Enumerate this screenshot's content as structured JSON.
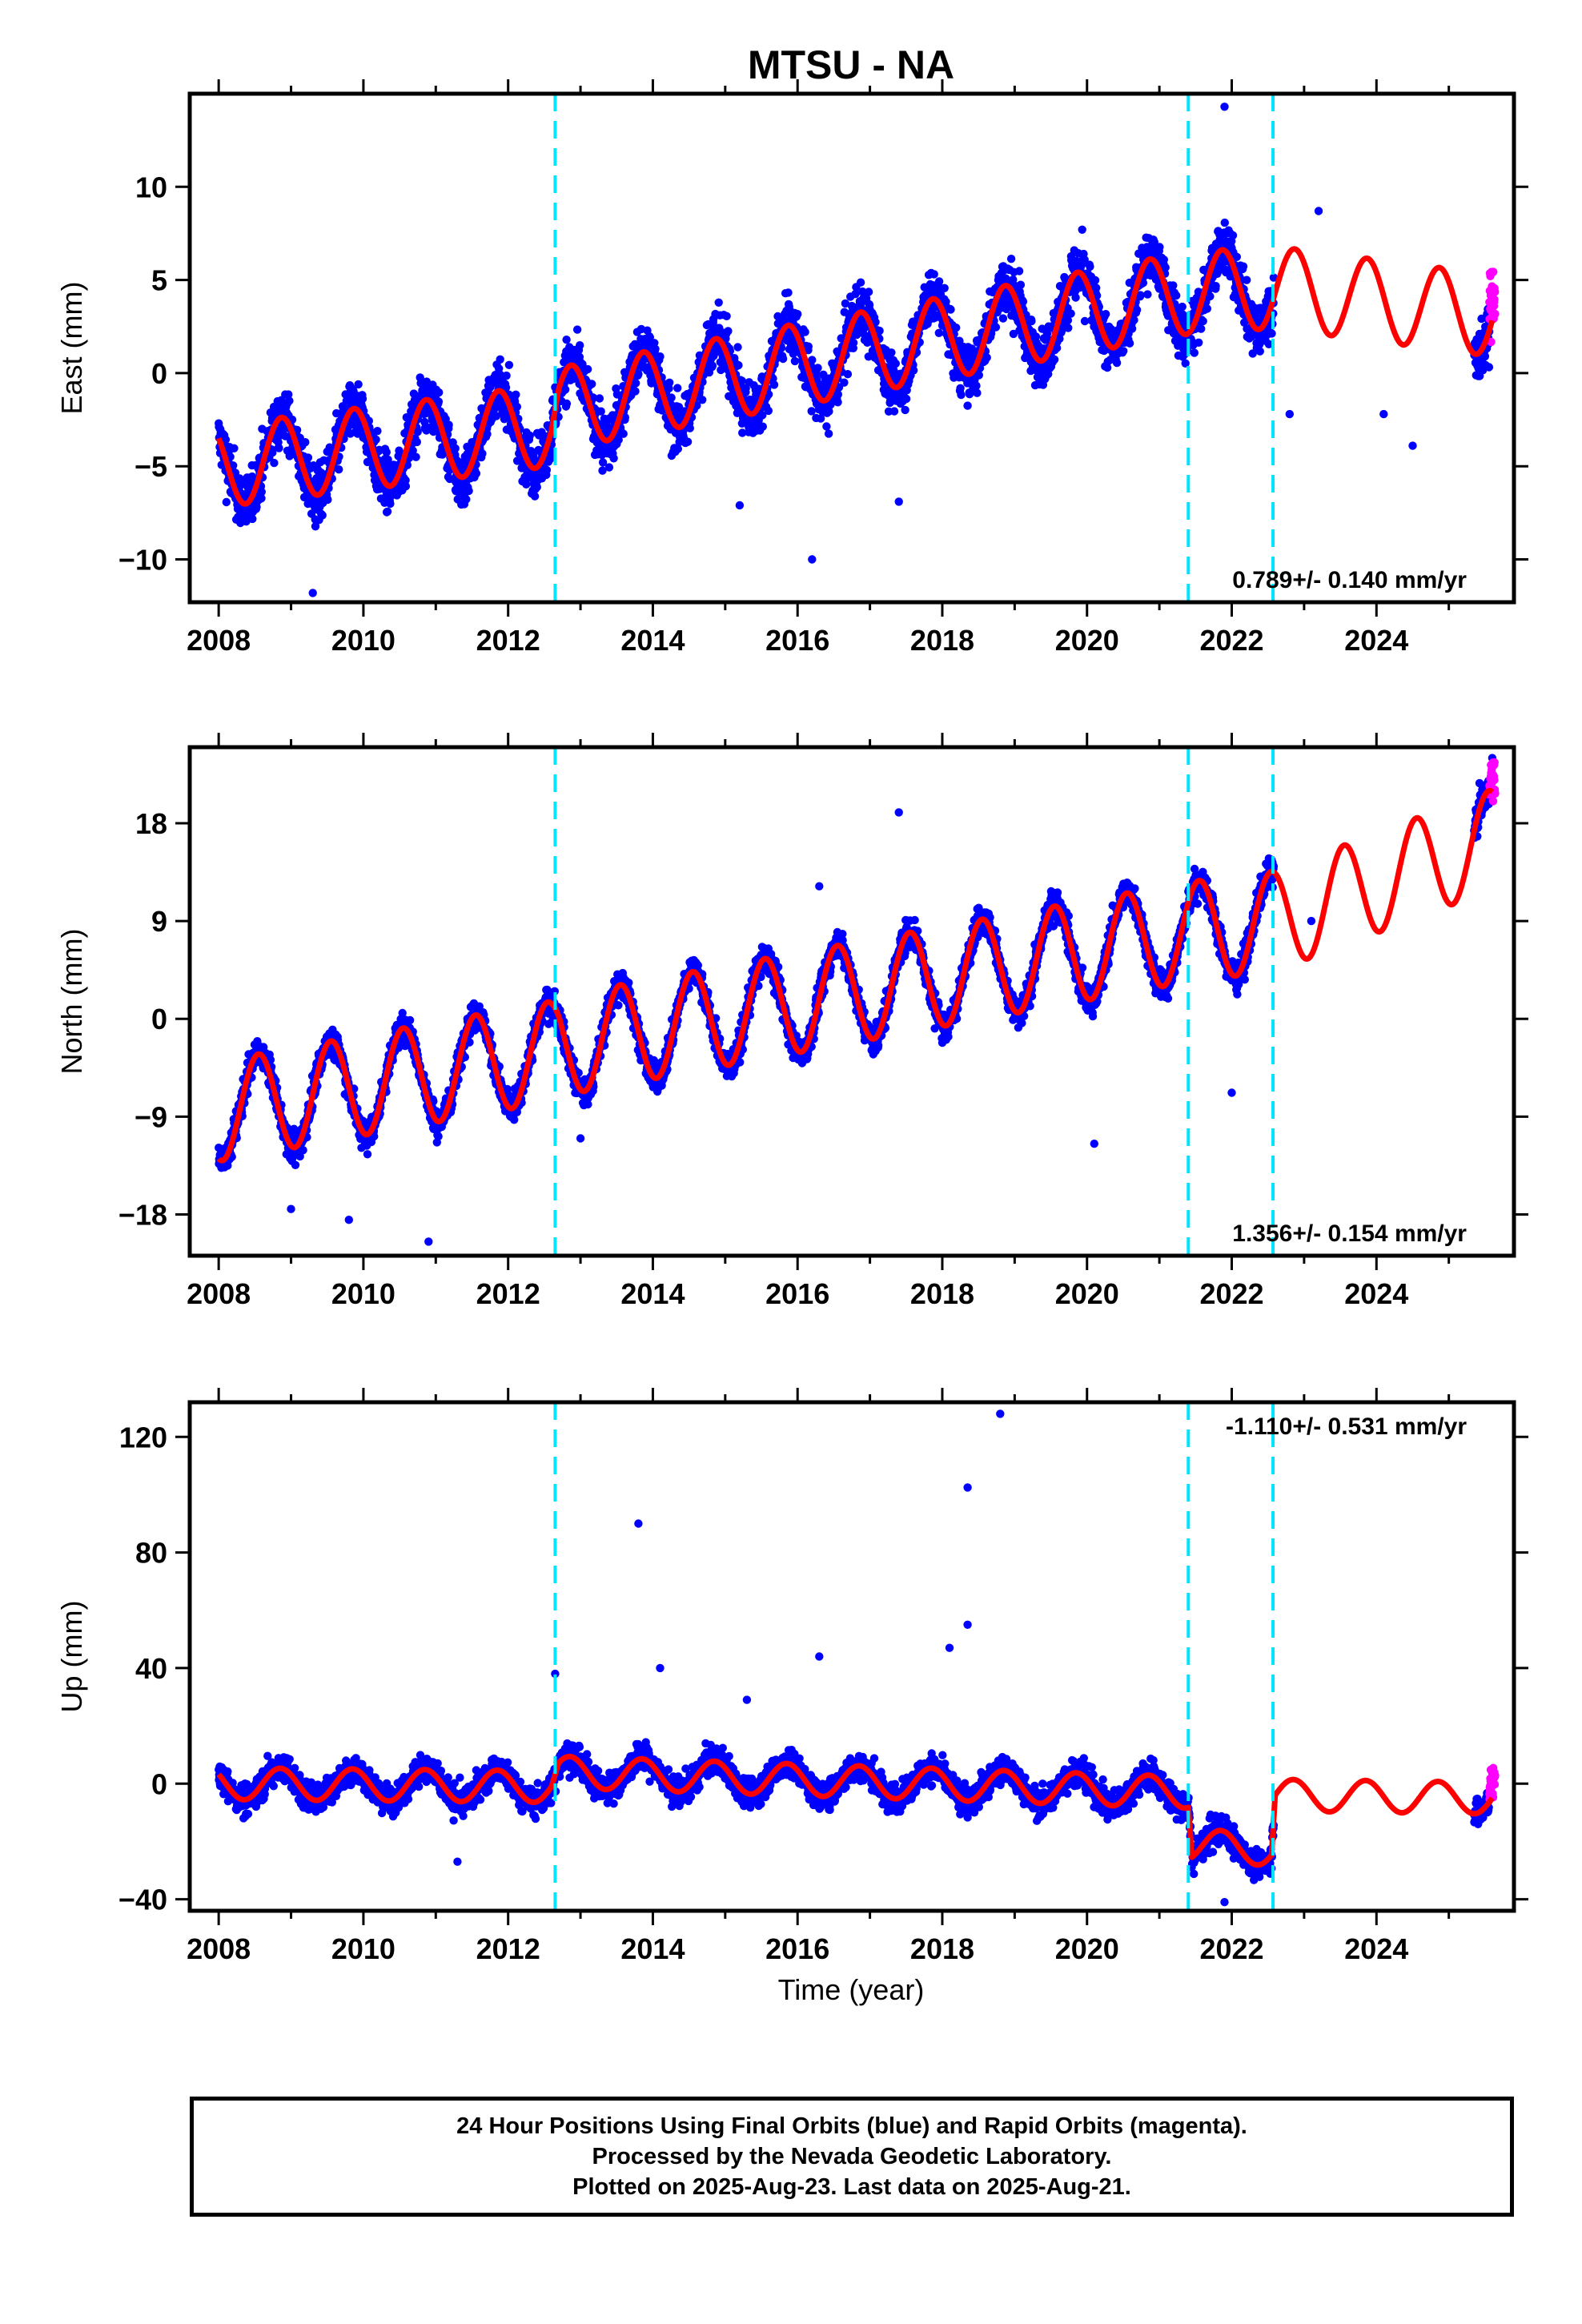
{
  "title": "MTSU - NA",
  "x_label": "Time (year)",
  "x_ticks": [
    "2008",
    "2010",
    "2012",
    "2014",
    "2016",
    "2018",
    "2020",
    "2022",
    "2024"
  ],
  "caption": [
    "24 Hour Positions Using Final Orbits (blue) and Rapid Orbits (magenta).",
    "Processed by the Nevada Geodetic Laboratory.",
    "Plotted on 2025-Aug-23. Last data on 2025-Aug-21."
  ],
  "colors": {
    "final_orbits": "#0000ff",
    "rapid_orbits": "#ff00ff",
    "model_fit": "#ff0000",
    "steps": "#00e5ff",
    "axes": "#000000"
  },
  "chart_data": [
    {
      "type": "scatter",
      "name": "east",
      "ylabel": "East (mm)",
      "xlim": [
        2007.6,
        2025.9
      ],
      "ylim": [
        -12.3,
        15.0
      ],
      "y_ticks": [
        10,
        5,
        0,
        -5,
        -10
      ],
      "y_tick_labels": [
        "10",
        "5",
        "0",
        "−5",
        "−10"
      ],
      "step_lines": [
        2012.65,
        2021.4,
        2022.57
      ],
      "rate_label": "0.789+/- 0.140 mm/yr",
      "rate_label_position": "bottom-right",
      "model": {
        "base": [
          [
            2008.0,
            -5.0
          ],
          [
            2012.6,
            -2.8
          ],
          [
            2012.7,
            -1.9
          ],
          [
            2021.4,
            4.3
          ],
          [
            2022.6,
            4.6
          ],
          [
            2025.6,
            3.1
          ]
        ],
        "amplitude": 2.2,
        "peak_phase": 0.87
      },
      "final_orbits_range": [
        [
          2008.0,
          2022.58
        ],
        [
          2025.35,
          2025.56
        ]
      ],
      "rapid_orbits_range": [
        2025.56,
        2025.64
      ],
      "scatter_noise": 1.4,
      "outliers": [
        [
          2021.9,
          14.3
        ],
        [
          2016.2,
          -10.0
        ],
        [
          2009.3,
          -11.8
        ],
        [
          2017.4,
          -6.9
        ],
        [
          2015.2,
          -7.1
        ],
        [
          2023.2,
          8.7
        ],
        [
          2024.5,
          -3.9
        ],
        [
          2022.8,
          -2.2
        ],
        [
          2024.1,
          -2.2
        ]
      ]
    },
    {
      "type": "scatter",
      "name": "north",
      "ylabel": "North (mm)",
      "xlim": [
        2007.6,
        2025.9
      ],
      "ylim": [
        -21.8,
        25.0
      ],
      "y_ticks": [
        18,
        9,
        0,
        -9,
        -18
      ],
      "y_tick_labels": [
        "18",
        "9",
        "0",
        "−9",
        "−18"
      ],
      "step_lines": [
        2012.65,
        2021.4,
        2022.57
      ],
      "rate_label": "1.356+/- 0.154 mm/yr",
      "rate_label_position": "bottom-right",
      "model": {
        "base": [
          [
            2008.0,
            -8.5
          ],
          [
            2012.6,
            -3.0
          ],
          [
            2012.7,
            -2.5
          ],
          [
            2021.4,
            8.0
          ],
          [
            2022.6,
            9.0
          ],
          [
            2025.6,
            16.5
          ]
        ],
        "amplitude": 4.6,
        "peak_phase": 0.55
      },
      "final_orbits_range": [
        [
          2008.0,
          2022.58
        ],
        [
          2025.35,
          2025.56
        ]
      ],
      "rapid_orbits_range": [
        2025.56,
        2025.64
      ],
      "scatter_noise": 1.3,
      "outliers": [
        [
          2017.4,
          19.0
        ],
        [
          2010.9,
          -20.5
        ],
        [
          2009.0,
          -17.5
        ],
        [
          2009.8,
          -18.5
        ],
        [
          2020.1,
          -11.5
        ],
        [
          2013.0,
          -11.0
        ],
        [
          2022.0,
          -6.8
        ],
        [
          2016.3,
          12.2
        ],
        [
          2023.1,
          9.0
        ],
        [
          2025.6,
          24.0
        ]
      ]
    },
    {
      "type": "scatter",
      "name": "up",
      "ylabel": "Up (mm)",
      "xlim": [
        2007.6,
        2025.9
      ],
      "ylim": [
        -44.0,
        132.0
      ],
      "y_ticks": [
        120,
        80,
        40,
        0,
        -40
      ],
      "y_tick_labels": [
        "120",
        "80",
        "40",
        "0",
        "−40"
      ],
      "step_lines": [
        2012.65,
        2021.4,
        2022.57
      ],
      "rate_label": "-1.110+/- 0.531 mm/yr",
      "rate_label_position": "top-right",
      "model": {
        "base": [
          [
            2008.0,
            0.0
          ],
          [
            2012.6,
            -1.0
          ],
          [
            2012.7,
            4.0
          ],
          [
            2021.4,
            -3.0
          ],
          [
            2021.45,
            -21.0
          ],
          [
            2022.55,
            -23.0
          ],
          [
            2022.6,
            -4.0
          ],
          [
            2025.6,
            -5.0
          ]
        ],
        "amplitude": 5.5,
        "peak_phase": 0.85
      },
      "final_orbits_range": [
        [
          2008.0,
          2022.58
        ],
        [
          2025.35,
          2025.56
        ]
      ],
      "rapid_orbits_range": [
        2025.56,
        2025.64
      ],
      "scatter_noise": 4.5,
      "outliers": [
        [
          2018.8,
          128.0
        ],
        [
          2018.35,
          102.5
        ],
        [
          2013.8,
          90.0
        ],
        [
          2018.35,
          55.0
        ],
        [
          2016.3,
          44.0
        ],
        [
          2018.1,
          47.0
        ],
        [
          2012.65,
          38.0
        ],
        [
          2014.1,
          40.0
        ],
        [
          2011.3,
          -27.0
        ],
        [
          2021.9,
          -41.0
        ],
        [
          2015.3,
          29.0
        ]
      ]
    }
  ]
}
